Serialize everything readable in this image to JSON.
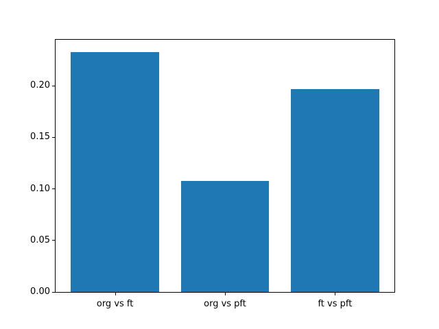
{
  "chart_data": {
    "type": "bar",
    "categories": [
      "org vs ft",
      "org vs pft",
      "ft vs pft"
    ],
    "values": [
      0.233,
      0.108,
      0.197
    ],
    "yticks": [
      0.0,
      0.05,
      0.1,
      0.15,
      0.2
    ],
    "ytick_labels": [
      "0.00",
      "0.05",
      "0.10",
      "0.15",
      "0.20"
    ],
    "ylim": [
      0,
      0.2447
    ],
    "bar_color": "#1f77b4",
    "spine_color": "#000000",
    "background_color": "#ffffff",
    "grid": false,
    "legend": null,
    "title": "",
    "xlabel": "",
    "ylabel": ""
  }
}
